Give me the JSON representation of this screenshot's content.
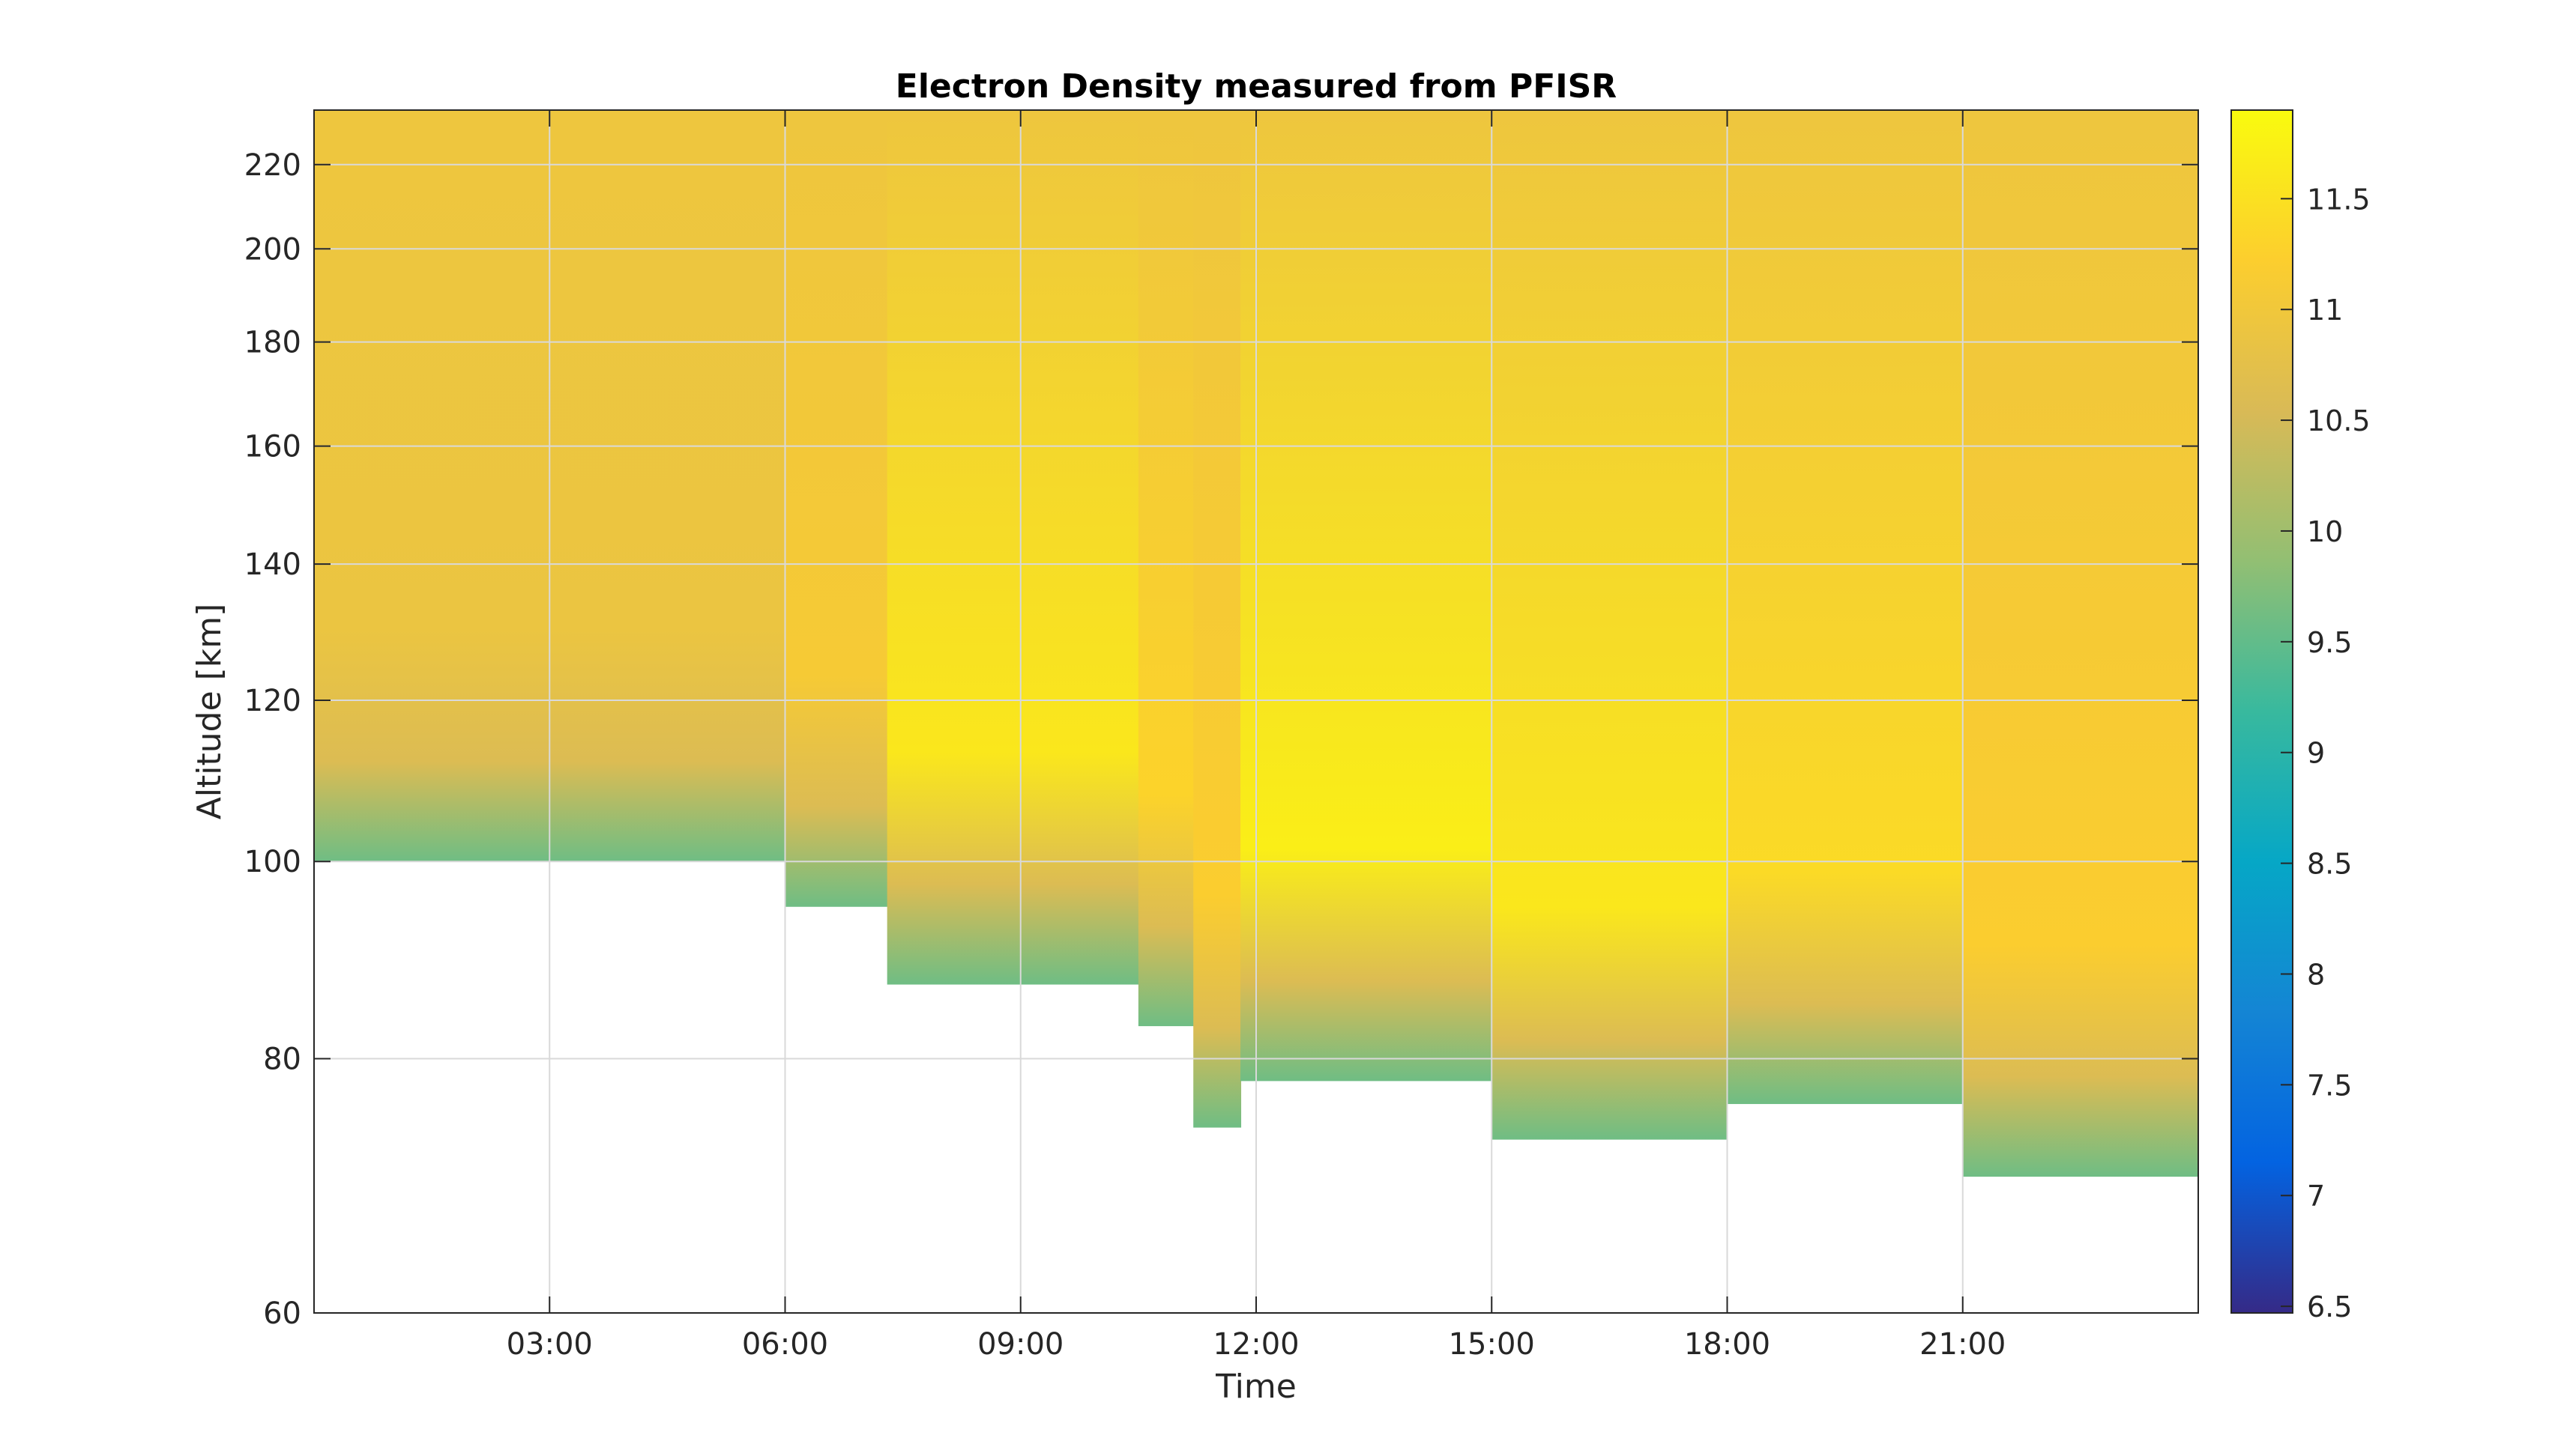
{
  "chart_data": {
    "type": "heatmap",
    "title": "Electron Density measured from PFISR",
    "xlabel": "Time",
    "ylabel": "Altitude [km]",
    "x_ticks": [
      "03:00",
      "06:00",
      "09:00",
      "12:00",
      "15:00",
      "18:00",
      "21:00"
    ],
    "x_tick_hours": [
      3,
      6,
      9,
      12,
      15,
      18,
      21
    ],
    "xlim_hours": [
      0,
      24
    ],
    "y_ticks": [
      60,
      80,
      100,
      120,
      140,
      160,
      180,
      200,
      220
    ],
    "ylim": [
      60,
      234
    ],
    "y_scale": "log",
    "grid": true,
    "colorbar": {
      "ticks": [
        6.5,
        7,
        7.5,
        8,
        8.5,
        9,
        9.5,
        10,
        10.5,
        11,
        11.5
      ],
      "tick_labels": [
        "6.5",
        "7",
        "7.5",
        "8",
        "8.5",
        "9",
        "9.5",
        "10",
        "10.5",
        "11",
        "11.5"
      ],
      "range": [
        6.47,
        11.9
      ],
      "colormap": "parula",
      "colors": [
        "#352a87",
        "#0363e1",
        "#1485d4",
        "#06a7c6",
        "#38b99e",
        "#92bf73",
        "#d9ba56",
        "#fcce2e",
        "#f9fb0e"
      ]
    },
    "data_regions": [
      {
        "time_start": 0.0,
        "time_end": 6.0,
        "min_altitude": 100,
        "level": 10.9
      },
      {
        "time_start": 6.0,
        "time_end": 7.3,
        "min_altitude": 95,
        "level": 11.1
      },
      {
        "time_start": 7.3,
        "time_end": 10.5,
        "min_altitude": 87,
        "level": 11.6
      },
      {
        "time_start": 10.5,
        "time_end": 11.2,
        "min_altitude": 83,
        "level": 11.3
      },
      {
        "time_start": 11.2,
        "time_end": 11.8,
        "min_altitude": 74,
        "level": 11.2
      },
      {
        "time_start": 11.8,
        "time_end": 15.0,
        "min_altitude": 78,
        "level": 11.7
      },
      {
        "time_start": 15.0,
        "time_end": 18.0,
        "min_altitude": 73,
        "level": 11.6
      },
      {
        "time_start": 18.0,
        "time_end": 21.0,
        "min_altitude": 76,
        "level": 11.4
      },
      {
        "time_start": 21.0,
        "time_end": 24.0,
        "min_altitude": 70,
        "level": 11.2
      }
    ]
  }
}
